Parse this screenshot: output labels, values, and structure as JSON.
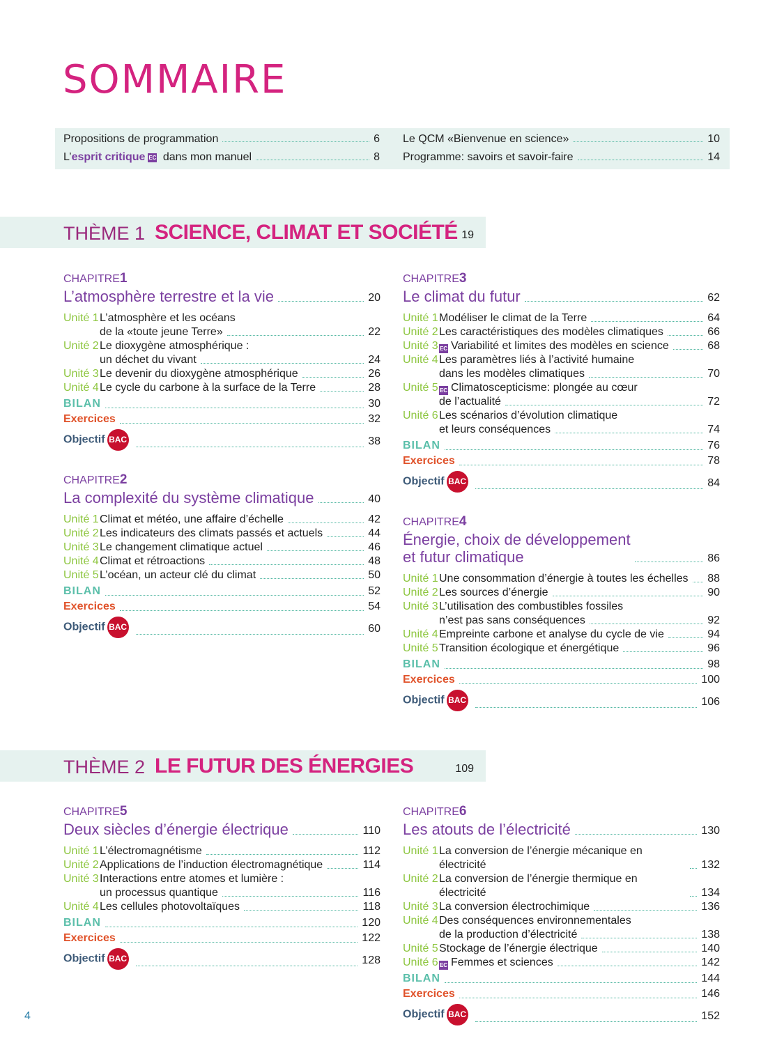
{
  "title": "SOMMAIRE",
  "intro": [
    {
      "text": "Propositions de programmation",
      "page": "6"
    },
    {
      "pre": "L’",
      "highlight": "esprit critique",
      "ec": "EC",
      "post": " dans mon manuel",
      "page": "8"
    },
    {
      "text": "Le QCM «Bienvenue en science»",
      "page": "10"
    },
    {
      "text": "Programme: savoirs et savoir-faire",
      "page": "14"
    }
  ],
  "labels": {
    "chapter": "CHAPITRE",
    "bilan": "BILAN",
    "exercices": "Exercices",
    "objectif": "Objectif",
    "bac": "BAC",
    "ec": "EC"
  },
  "themes": [
    {
      "label": "THÈME 1",
      "name": "SCIENCE, CLIMAT ET SOCIÉTÉ",
      "page": "19"
    },
    {
      "label": "THÈME 2",
      "name": "LE FUTUR DES ÉNERGIES",
      "page": "109"
    }
  ],
  "chapters": [
    {
      "num": "1",
      "title": [
        "L’atmosphère terrestre et la vie"
      ],
      "page": "20",
      "units": [
        {
          "u": "Unité 1",
          "lines": [
            "L’atmosphère et les océans",
            "de la «toute jeune Terre»"
          ],
          "page": "22"
        },
        {
          "u": "Unité 2",
          "lines": [
            "Le dioxygène atmosphérique :",
            "un déchet du vivant"
          ],
          "page": "24"
        },
        {
          "u": "Unité 3",
          "lines": [
            "Le devenir du dioxygène atmosphérique"
          ],
          "page": "26"
        },
        {
          "u": "Unité 4",
          "lines": [
            "Le cycle du carbone à la surface de la Terre"
          ],
          "page": "28"
        }
      ],
      "bilan": "30",
      "exercices": "32",
      "objectif": "38"
    },
    {
      "num": "2",
      "title": [
        "La complexité du système climatique"
      ],
      "page": "40",
      "units": [
        {
          "u": "Unité 1",
          "lines": [
            "Climat et météo, une affaire d’échelle"
          ],
          "page": "42"
        },
        {
          "u": "Unité 2",
          "lines": [
            "Les indicateurs des climats passés et actuels"
          ],
          "page": "44"
        },
        {
          "u": "Unité 3",
          "lines": [
            "Le changement climatique actuel"
          ],
          "page": "46"
        },
        {
          "u": "Unité 4",
          "lines": [
            "Climat et rétroactions"
          ],
          "page": "48"
        },
        {
          "u": "Unité 5",
          "lines": [
            "L’océan, un acteur clé du climat"
          ],
          "page": "50"
        }
      ],
      "bilan": "52",
      "exercices": "54",
      "objectif": "60"
    },
    {
      "num": "3",
      "title": [
        "Le climat du futur"
      ],
      "page": "62",
      "units": [
        {
          "u": "Unité 1",
          "lines": [
            "Modéliser le climat de la Terre"
          ],
          "page": "64"
        },
        {
          "u": "Unité 2",
          "lines": [
            "Les caractéristiques des modèles climatiques"
          ],
          "page": "66"
        },
        {
          "u": "Unité 3",
          "ec": true,
          "lines": [
            "Variabilité et limites des modèles en science"
          ],
          "page": "68"
        },
        {
          "u": "Unité 4",
          "lines": [
            "Les paramètres liés à l’activité humaine",
            "dans les modèles climatiques"
          ],
          "page": "70"
        },
        {
          "u": "Unité 5",
          "ec": true,
          "lines": [
            "Climatoscepticisme: plongée au cœur",
            "de l’actualité"
          ],
          "page": "72"
        },
        {
          "u": "Unité 6",
          "lines": [
            "Les scénarios d’évolution climatique",
            "et leurs conséquences"
          ],
          "page": "74"
        }
      ],
      "bilan": "76",
      "exercices": "78",
      "objectif": "84"
    },
    {
      "num": "4",
      "title": [
        "Énergie, choix de développement",
        "et futur climatique"
      ],
      "page": "86",
      "units": [
        {
          "u": "Unité 1",
          "lines": [
            "Une consommation d’énergie à toutes les échelles"
          ],
          "page": "88"
        },
        {
          "u": "Unité 2",
          "lines": [
            "Les sources d’énergie"
          ],
          "page": "90"
        },
        {
          "u": "Unité 3",
          "lines": [
            "L’utilisation des combustibles fossiles",
            "n’est pas sans conséquences"
          ],
          "page": "92"
        },
        {
          "u": "Unité 4",
          "lines": [
            "Empreinte carbone et analyse du cycle de vie"
          ],
          "page": "94"
        },
        {
          "u": "Unité 5",
          "lines": [
            "Transition écologique et énergétique"
          ],
          "page": "96"
        }
      ],
      "bilan": "98",
      "exercices": "100",
      "objectif": "106"
    },
    {
      "num": "5",
      "title": [
        "Deux siècles d’énergie électrique"
      ],
      "page": "110",
      "units": [
        {
          "u": "Unité 1",
          "lines": [
            "L’électromagnétisme"
          ],
          "page": "112"
        },
        {
          "u": "Unité 2",
          "lines": [
            "Applications de l’induction électromagnétique"
          ],
          "page": "114"
        },
        {
          "u": "Unité 3",
          "lines": [
            "Interactions entre atomes et lumière :",
            "un processus quantique"
          ],
          "page": "116"
        },
        {
          "u": "Unité 4",
          "lines": [
            "Les cellules photovoltaïques"
          ],
          "page": "118"
        }
      ],
      "bilan": "120",
      "exercices": "122",
      "objectif": "128"
    },
    {
      "num": "6",
      "title": [
        "Les atouts de l’électricité"
      ],
      "page": "130",
      "units": [
        {
          "u": "Unité 1",
          "lines": [
            "La conversion de l’énergie mécanique en électricité"
          ],
          "page": "132"
        },
        {
          "u": "Unité 2",
          "lines": [
            "La conversion de l’énergie thermique en électricité"
          ],
          "page": "134"
        },
        {
          "u": "Unité 3",
          "lines": [
            "La conversion électrochimique"
          ],
          "page": "136"
        },
        {
          "u": "Unité 4",
          "lines": [
            "Des conséquences environnementales",
            "de la production d’électricité"
          ],
          "page": "138"
        },
        {
          "u": "Unité 5",
          "lines": [
            "Stockage de l’énergie électrique"
          ],
          "page": "140"
        },
        {
          "u": "Unité 6",
          "ec": true,
          "lines": [
            "Femmes et sciences"
          ],
          "page": "142"
        }
      ],
      "bilan": "144",
      "exercices": "146",
      "objectif": "152"
    }
  ],
  "folio": "4",
  "colors": {
    "magenta": "#d4237f",
    "purple": "#7b3fa0",
    "green": "#8dc63f",
    "teal": "#5bbfaa",
    "orange": "#e0522a",
    "slate": "#3d5a78",
    "bac_red": "#c8102e",
    "band": "#e6f2ef"
  }
}
